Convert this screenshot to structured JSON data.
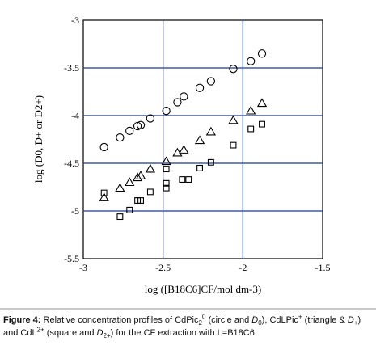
{
  "chart_data": {
    "type": "scatter",
    "xlabel": "log ([B18C6]CF/mol dm-3)",
    "ylabel": "log (D0, D+ or D2+)",
    "xlim": [
      -3,
      -1.5
    ],
    "ylim": [
      -5.5,
      -3
    ],
    "x_ticks": [
      "-3",
      "-2.5",
      "-2",
      "-1.5"
    ],
    "y_ticks": [
      "-3",
      "-3.5",
      "-4",
      "-4.5",
      "-5",
      "-5.5"
    ],
    "grid": true,
    "series": [
      {
        "marker": "circle",
        "points": [
          {
            "x": -2.87,
            "y": -4.33
          },
          {
            "x": -2.77,
            "y": -4.23
          },
          {
            "x": -2.71,
            "y": -4.16
          },
          {
            "x": -2.66,
            "y": -4.11
          },
          {
            "x": -2.64,
            "y": -4.1
          },
          {
            "x": -2.58,
            "y": -4.03
          },
          {
            "x": -2.48,
            "y": -3.95
          },
          {
            "x": -2.41,
            "y": -3.86
          },
          {
            "x": -2.37,
            "y": -3.8
          },
          {
            "x": -2.27,
            "y": -3.71
          },
          {
            "x": -2.2,
            "y": -3.64
          },
          {
            "x": -2.06,
            "y": -3.51
          },
          {
            "x": -1.95,
            "y": -3.43
          },
          {
            "x": -1.88,
            "y": -3.35
          }
        ]
      },
      {
        "marker": "triangle",
        "points": [
          {
            "x": -2.87,
            "y": -4.86
          },
          {
            "x": -2.77,
            "y": -4.76
          },
          {
            "x": -2.71,
            "y": -4.7
          },
          {
            "x": -2.66,
            "y": -4.65
          },
          {
            "x": -2.64,
            "y": -4.63
          },
          {
            "x": -2.58,
            "y": -4.56
          },
          {
            "x": -2.48,
            "y": -4.48
          },
          {
            "x": -2.41,
            "y": -4.39
          },
          {
            "x": -2.37,
            "y": -4.36
          },
          {
            "x": -2.27,
            "y": -4.26
          },
          {
            "x": -2.2,
            "y": -4.17
          },
          {
            "x": -2.06,
            "y": -4.05
          },
          {
            "x": -1.95,
            "y": -3.95
          },
          {
            "x": -1.88,
            "y": -3.87
          }
        ]
      },
      {
        "marker": "square",
        "points": [
          {
            "x": -2.87,
            "y": -4.81
          },
          {
            "x": -2.77,
            "y": -5.06
          },
          {
            "x": -2.71,
            "y": -4.99
          },
          {
            "x": -2.66,
            "y": -4.89
          },
          {
            "x": -2.64,
            "y": -4.89
          },
          {
            "x": -2.58,
            "y": -4.8
          },
          {
            "x": -2.48,
            "y": -4.76
          },
          {
            "x": -2.48,
            "y": -4.71
          },
          {
            "x": -2.48,
            "y": -4.56
          },
          {
            "x": -2.38,
            "y": -4.67
          },
          {
            "x": -2.34,
            "y": -4.67
          },
          {
            "x": -2.27,
            "y": -4.55
          },
          {
            "x": -2.2,
            "y": -4.49
          },
          {
            "x": -2.06,
            "y": -4.31
          },
          {
            "x": -1.95,
            "y": -4.14
          },
          {
            "x": -1.88,
            "y": -4.09
          }
        ]
      }
    ]
  },
  "caption": {
    "label": "Figure 4:",
    "t1": " Relative concentration profiles of CdPic",
    "t1_sub": "2",
    "t1_sup": "0",
    "t2": " (circle and ",
    "t3": "D",
    "t3_sub": "0",
    "t4": "), CdLPic",
    "t4_sup": "+",
    "t5": " (triangle & ",
    "t6": "D",
    "t6_sub": "+",
    "t7": ") and CdL",
    "t7_sup": "2+",
    "t8": " (square and ",
    "t9": "D",
    "t9_sub": "2+",
    "t10": ") for the CF extraction with L=B18C6."
  }
}
